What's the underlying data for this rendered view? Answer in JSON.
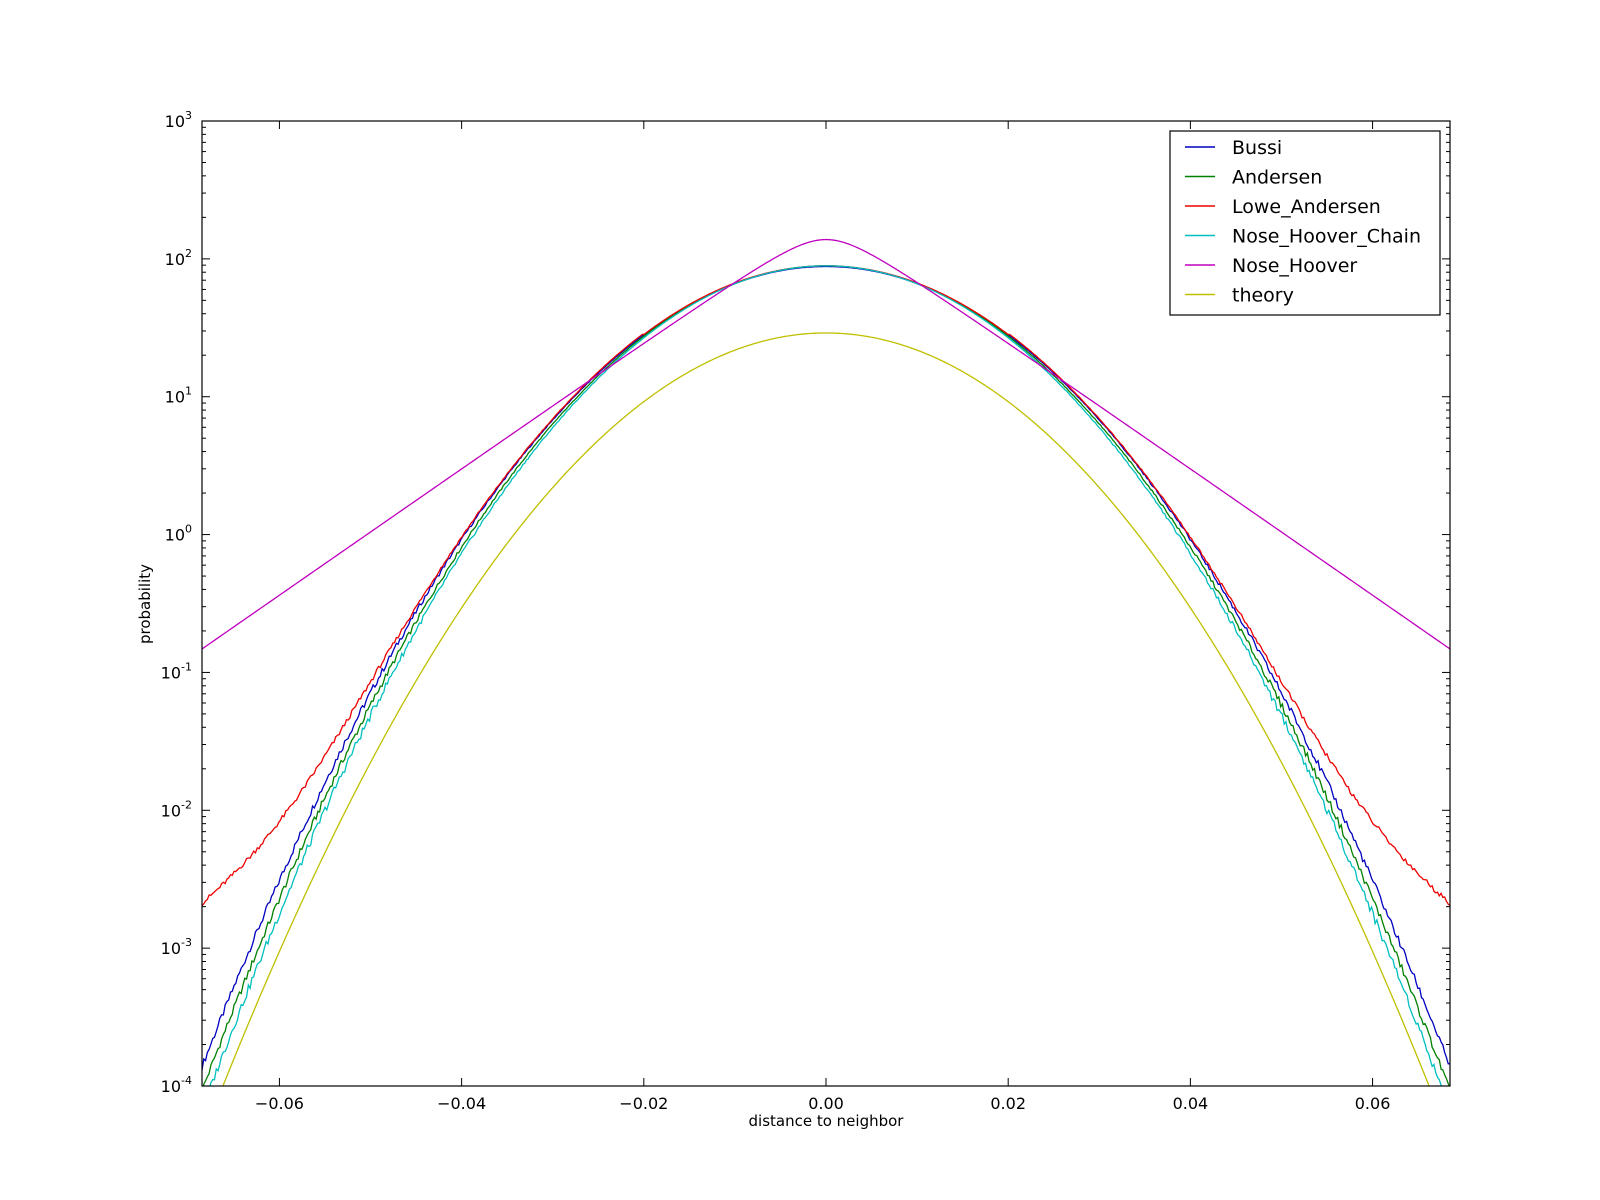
{
  "chart_data": {
    "type": "line",
    "xlabel": "distance to neighbor",
    "ylabel": "probability",
    "xlim": [
      -0.0685,
      0.0685
    ],
    "ylim": [
      0.0001,
      1000
    ],
    "yscale": "log",
    "grid": false,
    "legend_position": "top-right",
    "x_ticks": [
      {
        "value": -0.06,
        "label": "−0.06"
      },
      {
        "value": -0.04,
        "label": "−0.04"
      },
      {
        "value": -0.02,
        "label": "−0.02"
      },
      {
        "value": 0.0,
        "label": "0.00"
      },
      {
        "value": 0.02,
        "label": "0.02"
      },
      {
        "value": 0.04,
        "label": "0.04"
      },
      {
        "value": 0.06,
        "label": "0.06"
      }
    ],
    "y_ticks": [
      {
        "exp": -4,
        "base": "10",
        "sup": "-4"
      },
      {
        "exp": -3,
        "base": "10",
        "sup": "-3"
      },
      {
        "exp": -2,
        "base": "10",
        "sup": "-2"
      },
      {
        "exp": -1,
        "base": "10",
        "sup": "-1"
      },
      {
        "exp": 0,
        "base": "10",
        "sup": "0"
      },
      {
        "exp": 1,
        "base": "10",
        "sup": "1"
      },
      {
        "exp": 2,
        "base": "10",
        "sup": "2"
      },
      {
        "exp": 3,
        "base": "10",
        "sup": "3"
      }
    ],
    "series": [
      {
        "name": "Bussi",
        "color": "#0000bf",
        "model": "gauss",
        "peak": 88,
        "sigma": 0.01325,
        "noise": 0.03
      },
      {
        "name": "Andersen",
        "color": "#008000",
        "model": "gauss",
        "peak": 89,
        "sigma": 0.01305,
        "noise": 0.03
      },
      {
        "name": "Lowe_Andersen",
        "color": "#ee0000",
        "model": "gauss_tail",
        "peak": 89,
        "sigma": 0.0132,
        "tail_amp": 0.028,
        "tail_x0": 0.046,
        "tail_w": 0.0085,
        "noise": 0.02
      },
      {
        "name": "Nose_Hoover_Chain",
        "color": "#00bfbf",
        "model": "gauss",
        "peak": 89,
        "sigma": 0.0129,
        "noise": 0.035
      },
      {
        "name": "Nose_Hoover",
        "color": "#bf00bf",
        "model": "laplace",
        "peak": 138,
        "scale": 0.00945,
        "core": 0.004
      },
      {
        "name": "theory",
        "color": "#bfbf00",
        "model": "gauss",
        "peak": 29,
        "sigma": 0.0132,
        "noise": 0
      }
    ]
  }
}
